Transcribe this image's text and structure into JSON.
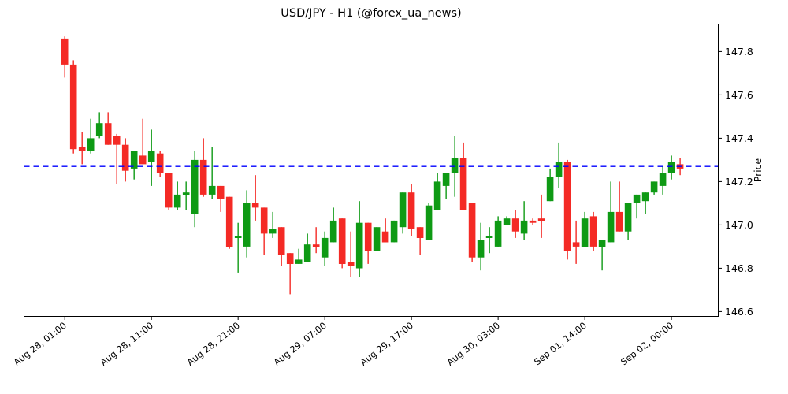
{
  "chart_data": {
    "type": "candlestick",
    "title": "USD/JPY - H1 (@forex_ua_news)",
    "ylabel": "Price",
    "grid": false,
    "legend_position": "none",
    "up_color": "#0e9a14",
    "down_color": "#f42a25",
    "spine_color": "#000000",
    "hline": {
      "value": 147.27,
      "color": "#0000ff",
      "style": "dashed"
    },
    "ylim": [
      146.578,
      147.927
    ],
    "xlim": [
      -4.7,
      75.4
    ],
    "y_ticks": [
      {
        "value": 147.8,
        "label": "147.8"
      },
      {
        "value": 147.6,
        "label": "147.6"
      },
      {
        "value": 147.4,
        "label": "147.4"
      },
      {
        "value": 147.2,
        "label": "147.2"
      },
      {
        "value": 147.0,
        "label": "147.0"
      },
      {
        "value": 146.8,
        "label": "146.8"
      },
      {
        "value": 146.6,
        "label": "146.6"
      }
    ],
    "x_ticks": [
      {
        "index": 0,
        "label": "Aug 28, 01:00"
      },
      {
        "index": 10,
        "label": "Aug 28, 11:00"
      },
      {
        "index": 20,
        "label": "Aug 28, 21:00"
      },
      {
        "index": 30,
        "label": "Aug 29, 07:00"
      },
      {
        "index": 40,
        "label": "Aug 29, 17:00"
      },
      {
        "index": 50,
        "label": "Aug 30, 03:00"
      },
      {
        "index": 60,
        "label": "Sep 01, 14:00"
      },
      {
        "index": 70,
        "label": "Sep 02, 00:00"
      }
    ],
    "candles_format": [
      "open",
      "high",
      "low",
      "close"
    ],
    "candles": [
      [
        147.86,
        147.87,
        147.68,
        147.74
      ],
      [
        147.74,
        147.76,
        147.33,
        147.35
      ],
      [
        147.36,
        147.43,
        147.28,
        147.34
      ],
      [
        147.34,
        147.49,
        147.33,
        147.4
      ],
      [
        147.41,
        147.52,
        147.4,
        147.47
      ],
      [
        147.47,
        147.52,
        147.37,
        147.37
      ],
      [
        147.41,
        147.42,
        147.19,
        147.37
      ],
      [
        147.37,
        147.4,
        147.2,
        147.25
      ],
      [
        147.26,
        147.34,
        147.21,
        147.34
      ],
      [
        147.32,
        147.49,
        147.28,
        147.28
      ],
      [
        147.29,
        147.44,
        147.18,
        147.34
      ],
      [
        147.33,
        147.34,
        147.22,
        147.24
      ],
      [
        147.24,
        147.24,
        147.07,
        147.08
      ],
      [
        147.08,
        147.2,
        147.07,
        147.14
      ],
      [
        147.14,
        147.2,
        147.07,
        147.15
      ],
      [
        147.05,
        147.34,
        146.99,
        147.3
      ],
      [
        147.3,
        147.4,
        147.13,
        147.14
      ],
      [
        147.14,
        147.36,
        147.12,
        147.18
      ],
      [
        147.18,
        147.18,
        147.06,
        147.12
      ],
      [
        147.13,
        147.13,
        146.89,
        146.9
      ],
      [
        146.94,
        147.01,
        146.78,
        146.95
      ],
      [
        146.9,
        147.16,
        146.85,
        147.1
      ],
      [
        147.1,
        147.23,
        147.02,
        147.08
      ],
      [
        147.08,
        147.08,
        146.86,
        146.96
      ],
      [
        146.96,
        147.06,
        146.94,
        146.98
      ],
      [
        146.99,
        146.99,
        146.81,
        146.86
      ],
      [
        146.87,
        146.87,
        146.68,
        146.82
      ],
      [
        146.82,
        146.89,
        146.82,
        146.84
      ],
      [
        146.83,
        146.96,
        146.83,
        146.91
      ],
      [
        146.91,
        146.99,
        146.87,
        146.9
      ],
      [
        146.85,
        146.97,
        146.81,
        146.94
      ],
      [
        146.92,
        147.08,
        146.92,
        147.02
      ],
      [
        147.03,
        147.03,
        146.8,
        146.82
      ],
      [
        146.83,
        146.97,
        146.76,
        146.81
      ],
      [
        146.8,
        147.11,
        146.76,
        147.01
      ],
      [
        147.01,
        147.01,
        146.82,
        146.88
      ],
      [
        146.88,
        146.99,
        146.88,
        146.99
      ],
      [
        146.97,
        147.03,
        146.92,
        146.92
      ],
      [
        146.92,
        147.02,
        146.92,
        147.02
      ],
      [
        146.99,
        147.15,
        146.96,
        147.15
      ],
      [
        147.15,
        147.19,
        146.95,
        146.98
      ],
      [
        146.99,
        146.99,
        146.86,
        146.94
      ],
      [
        146.93,
        147.1,
        146.93,
        147.09
      ],
      [
        147.07,
        147.24,
        147.07,
        147.2
      ],
      [
        147.18,
        147.24,
        147.12,
        147.24
      ],
      [
        147.24,
        147.41,
        147.13,
        147.31
      ],
      [
        147.31,
        147.38,
        147.07,
        147.07
      ],
      [
        147.1,
        147.1,
        146.83,
        146.85
      ],
      [
        146.85,
        147.01,
        146.79,
        146.93
      ],
      [
        146.94,
        146.99,
        146.87,
        146.95
      ],
      [
        146.9,
        147.04,
        146.9,
        147.02
      ],
      [
        147.0,
        147.04,
        147.0,
        147.03
      ],
      [
        147.03,
        147.07,
        146.94,
        146.97
      ],
      [
        146.96,
        147.11,
        146.93,
        147.02
      ],
      [
        147.02,
        147.03,
        147.0,
        147.01
      ],
      [
        147.03,
        147.14,
        146.94,
        147.02
      ],
      [
        147.11,
        147.26,
        147.11,
        147.22
      ],
      [
        147.22,
        147.38,
        147.17,
        147.29
      ],
      [
        147.29,
        147.3,
        146.84,
        146.88
      ],
      [
        146.92,
        147.02,
        146.82,
        146.9
      ],
      [
        146.9,
        147.06,
        146.9,
        147.03
      ],
      [
        147.04,
        147.06,
        146.88,
        146.9
      ],
      [
        146.9,
        146.93,
        146.79,
        146.93
      ],
      [
        146.92,
        147.2,
        146.92,
        147.06
      ],
      [
        147.06,
        147.2,
        146.97,
        146.97
      ],
      [
        146.97,
        147.1,
        146.93,
        147.1
      ],
      [
        147.1,
        147.14,
        147.03,
        147.14
      ],
      [
        147.11,
        147.15,
        147.05,
        147.15
      ],
      [
        147.15,
        147.2,
        147.14,
        147.2
      ],
      [
        147.18,
        147.27,
        147.14,
        147.24
      ],
      [
        147.24,
        147.32,
        147.21,
        147.29
      ],
      [
        147.28,
        147.31,
        147.23,
        147.26
      ]
    ]
  }
}
